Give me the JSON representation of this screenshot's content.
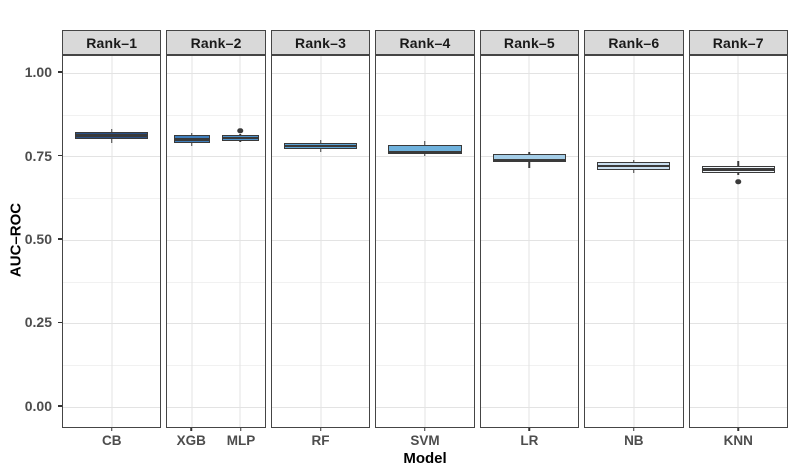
{
  "chart_data": {
    "type": "boxplot",
    "title": "",
    "xlabel": "Model",
    "ylabel": "AUC–ROC",
    "facet_variable_labels": [
      "Rank–1",
      "Rank–2",
      "Rank–3",
      "Rank–4",
      "Rank–5",
      "Rank–6",
      "Rank–7"
    ],
    "ylim": [
      -0.066,
      1.051
    ],
    "y_major_ticks": [
      {
        "label": "1.00",
        "value": 1.0
      },
      {
        "label": "0.75",
        "value": 0.75
      },
      {
        "label": "0.50",
        "value": 0.5
      },
      {
        "label": "0.25",
        "value": 0.25
      },
      {
        "label": "0.00",
        "value": 0.0
      }
    ],
    "y_minor_gridlines": [
      0.875,
      0.625,
      0.375,
      0.125
    ],
    "grid": true,
    "legend": "none",
    "facets": [
      {
        "label": "Rank–1",
        "boxes": [
          {
            "model": "CB",
            "fill": "#2b5186",
            "whisker_low": 0.79,
            "q1": 0.803,
            "median": 0.812,
            "q3": 0.822,
            "whisker_high": 0.832,
            "outliers": []
          }
        ]
      },
      {
        "label": "Rank–2",
        "boxes": [
          {
            "model": "XGB",
            "fill": "#3f7fbe",
            "whisker_low": 0.782,
            "q1": 0.79,
            "median": 0.8,
            "q3": 0.815,
            "whisker_high": 0.82,
            "outliers": []
          },
          {
            "model": "MLP",
            "fill": "#5093cb",
            "whisker_low": 0.793,
            "q1": 0.797,
            "median": 0.805,
            "q3": 0.813,
            "whisker_high": 0.816,
            "outliers": [
              0.826
            ]
          }
        ]
      },
      {
        "label": "Rank–3",
        "boxes": [
          {
            "model": "RF",
            "fill": "#5ea5d6",
            "whisker_low": 0.762,
            "q1": 0.772,
            "median": 0.781,
            "q3": 0.79,
            "whisker_high": 0.8,
            "outliers": []
          }
        ]
      },
      {
        "label": "Rank–4",
        "boxes": [
          {
            "model": "SVM",
            "fill": "#6fb2dd",
            "whisker_low": 0.752,
            "q1": 0.758,
            "median": 0.763,
            "q3": 0.784,
            "whisker_high": 0.795,
            "outliers": []
          }
        ]
      },
      {
        "label": "Rank–5",
        "boxes": [
          {
            "model": "LR",
            "fill": "#a5cee8",
            "whisker_low": 0.716,
            "q1": 0.732,
            "median": 0.738,
            "q3": 0.757,
            "whisker_high": 0.762,
            "outliers": []
          }
        ]
      },
      {
        "label": "Rank–6",
        "boxes": [
          {
            "model": "NB",
            "fill": "#cadff0",
            "whisker_low": 0.7,
            "q1": 0.708,
            "median": 0.721,
            "q3": 0.734,
            "whisker_high": 0.74,
            "outliers": []
          }
        ]
      },
      {
        "label": "Rank–7",
        "boxes": [
          {
            "model": "KNN",
            "fill": "#eff5fa",
            "whisker_low": 0.695,
            "q1": 0.7,
            "median": 0.711,
            "q3": 0.722,
            "whisker_high": 0.736,
            "outliers": [
              0.674
            ]
          }
        ]
      }
    ],
    "style": {
      "strip_bg": "#d9d9d9",
      "strip_text": "#1a1a1a",
      "panel_border": "#454545",
      "box_stroke": "#3a3a3a",
      "grid_major": "#e3e3e3",
      "grid_minor": "#f1f1f1",
      "tick_label_color": "#4d4d4d",
      "axis_title_color": "#000000"
    }
  }
}
